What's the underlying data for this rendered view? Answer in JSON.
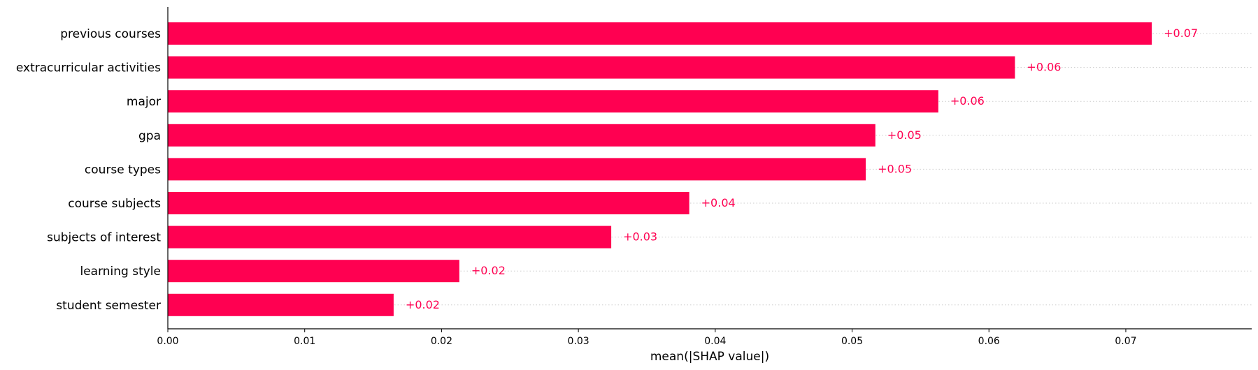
{
  "chart_data": {
    "type": "bar",
    "orientation": "horizontal",
    "categories": [
      "previous courses",
      "extracurricular activities",
      "major",
      "gpa",
      "course types",
      "course subjects",
      "subjects of interest",
      "learning style",
      "student semester"
    ],
    "values": [
      0.0719,
      0.0619,
      0.0563,
      0.0517,
      0.051,
      0.0381,
      0.0324,
      0.0213,
      0.0165
    ],
    "value_labels": [
      "+0.07",
      "+0.06",
      "+0.06",
      "+0.05",
      "+0.05",
      "+0.04",
      "+0.03",
      "+0.02",
      "+0.02"
    ],
    "xlabel": "mean(|SHAP value|)",
    "ylabel": "",
    "xlim": [
      0,
      0.0792
    ],
    "xticks": [
      0.0,
      0.01,
      0.02,
      0.03,
      0.04,
      0.05,
      0.06,
      0.07
    ],
    "xtick_labels": [
      "0.00",
      "0.01",
      "0.02",
      "0.03",
      "0.04",
      "0.05",
      "0.06",
      "0.07"
    ],
    "grid": "dotted horizontal guide lines per row",
    "legend": "none",
    "colors": {
      "bar": "#ff0051",
      "value_label": "#ff0051",
      "axis": "#000000",
      "guide": "#cccccc"
    }
  }
}
